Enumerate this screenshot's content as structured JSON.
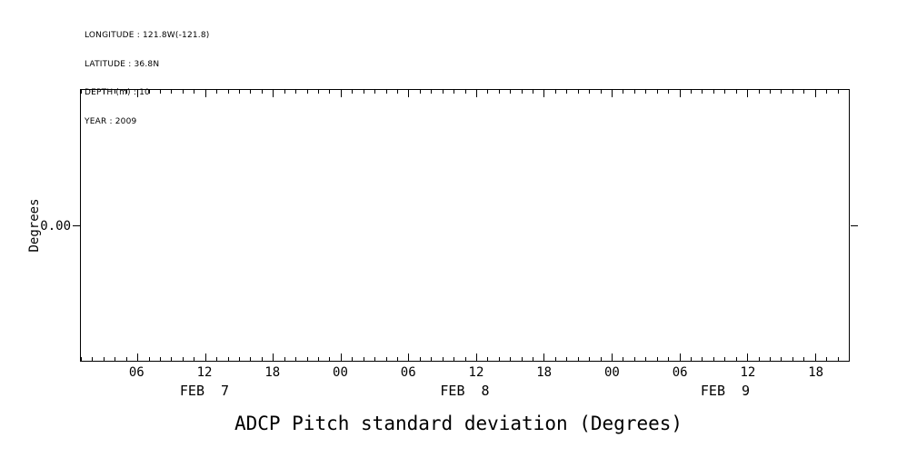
{
  "metadata": {
    "longitude": "LONGITUDE : 121.8W(-121.8)",
    "latitude": "LATITUDE : 36.8N",
    "depth": "DEPTH (m) : 10",
    "year": "YEAR : 2009"
  },
  "chart_data": {
    "type": "line",
    "title": "ADCP Pitch standard deviation (Degrees)",
    "ylabel": "Degrees",
    "y_ticks": [
      {
        "value": 0.0,
        "label": "0.00",
        "position_pct": 50
      }
    ],
    "x_axis": {
      "start_hour": 1,
      "end_hour": 69,
      "minor_tick_every_hours": 1,
      "major_tick_every_hours": 6
    },
    "x_major_tick_labels": [
      {
        "hour": 6,
        "label": "06"
      },
      {
        "hour": 12,
        "label": "12"
      },
      {
        "hour": 18,
        "label": "18"
      },
      {
        "hour": 24,
        "label": "00"
      },
      {
        "hour": 30,
        "label": "06"
      },
      {
        "hour": 36,
        "label": "12"
      },
      {
        "hour": 42,
        "label": "18"
      },
      {
        "hour": 48,
        "label": "00"
      },
      {
        "hour": 54,
        "label": "06"
      },
      {
        "hour": 60,
        "label": "12"
      },
      {
        "hour": 66,
        "label": "18"
      }
    ],
    "day_labels": [
      {
        "hour": 12,
        "label": "FEB  7"
      },
      {
        "hour": 35,
        "label": "FEB  8"
      },
      {
        "hour": 58,
        "label": "FEB  9"
      }
    ],
    "series": []
  }
}
